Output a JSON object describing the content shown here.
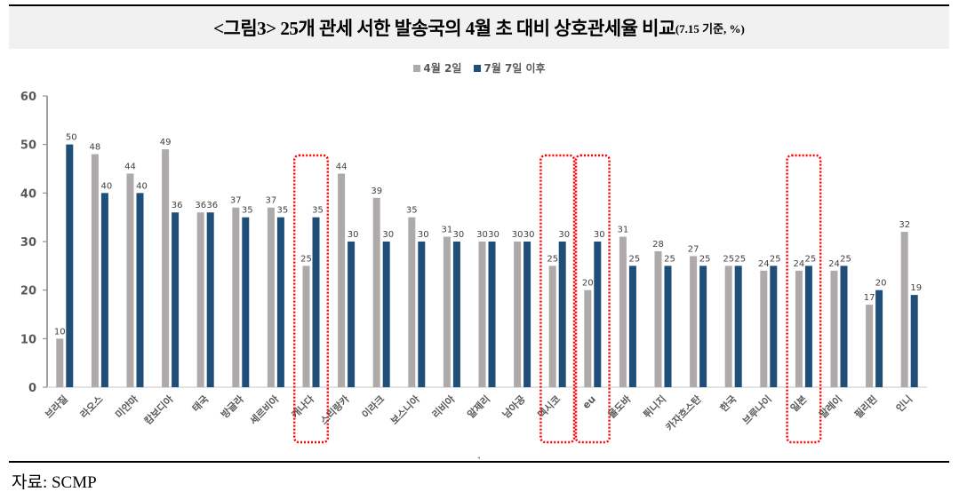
{
  "header": {
    "title_main": "<그림3> 25개 관세 서한 발송국의 4월 초 대비 상호관세율 비교",
    "title_sub": "(7.15 기준, %)"
  },
  "footer": {
    "source": "자료: SCMP"
  },
  "colors": {
    "april": "#aeaaaa",
    "july": "#1f4e79",
    "highlight_box": "#ff0000",
    "axis": "#595959",
    "title_band": "#f1f1f1"
  },
  "chart_data": {
    "type": "bar",
    "title": "<그림3> 25개 관세 서한 발송국의 4월 초 대비 상호관세율 비교(7.15 기준, %)",
    "xlabel": "",
    "ylabel": "",
    "ylim": [
      0,
      60
    ],
    "yticks": [
      0,
      10,
      20,
      30,
      40,
      50,
      60
    ],
    "grid": false,
    "legend_position": "top",
    "categories": [
      "브라질",
      "라오스",
      "미얀마",
      "캄보디아",
      "태국",
      "방글라",
      "세르비아",
      "캐나다",
      "스리랑카",
      "이라크",
      "보스니아",
      "리비아",
      "알제리",
      "남아공",
      "멕시코",
      "eu",
      "몰도바",
      "튀니지",
      "카자흐스탄",
      "한국",
      "브루나이",
      "일본",
      "말레이",
      "필리핀",
      "인니"
    ],
    "series": [
      {
        "name": "4월 2일",
        "color": "#aeaaaa",
        "values": [
          10,
          48,
          44,
          49,
          36,
          37,
          37,
          25,
          44,
          39,
          35,
          31,
          30,
          30,
          25,
          20,
          31,
          28,
          27,
          25,
          24,
          24,
          24,
          17,
          32
        ]
      },
      {
        "name": "7월 7일 이후",
        "color": "#1f4e79",
        "values": [
          50,
          40,
          40,
          36,
          36,
          35,
          35,
          35,
          30,
          30,
          30,
          30,
          30,
          30,
          30,
          30,
          25,
          25,
          25,
          25,
          25,
          25,
          25,
          20,
          19
        ]
      }
    ],
    "highlighted_categories": [
      "캐나다",
      "멕시코",
      "eu",
      "일본"
    ]
  }
}
